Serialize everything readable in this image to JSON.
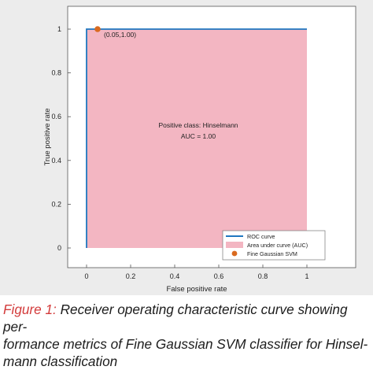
{
  "chart_data": {
    "type": "area",
    "xlabel": "False positive rate",
    "ylabel": "True positive rate",
    "xlim": [
      0,
      1
    ],
    "ylim": [
      0,
      1
    ],
    "xticks": [
      "0",
      "0.2",
      "0.4",
      "0.6",
      "0.8",
      "1"
    ],
    "yticks": [
      "0",
      "0.2",
      "0.4",
      "0.6",
      "0.8",
      "1"
    ],
    "grid": false,
    "legend_position": "bottom-right",
    "series": [
      {
        "name": "ROC curve",
        "type": "line",
        "x": [
          0,
          0,
          1
        ],
        "y": [
          0,
          1,
          1
        ],
        "color": "#1f77c0"
      },
      {
        "name": "Area under curve (AUC)",
        "type": "area",
        "x": [
          0,
          0,
          1,
          1
        ],
        "y": [
          0,
          1,
          1,
          0
        ],
        "color": "#f3b6c2"
      },
      {
        "name": "Fine Gaussian SVM",
        "type": "scatter",
        "x": [
          0.05
        ],
        "y": [
          1.0
        ],
        "color": "#d96a1f"
      }
    ],
    "point_label": "(0.05,1.00)",
    "annotations": [
      "Positive class: Hinselmann",
      "AUC = 1.00"
    ]
  },
  "caption": {
    "label": "Figure 1:",
    "line1_rest": " Receiver operating characteristic curve showing per-",
    "line2": "formance metrics of Fine Gaussian SVM classifier for Hinsel-",
    "line3": "mann classification"
  }
}
